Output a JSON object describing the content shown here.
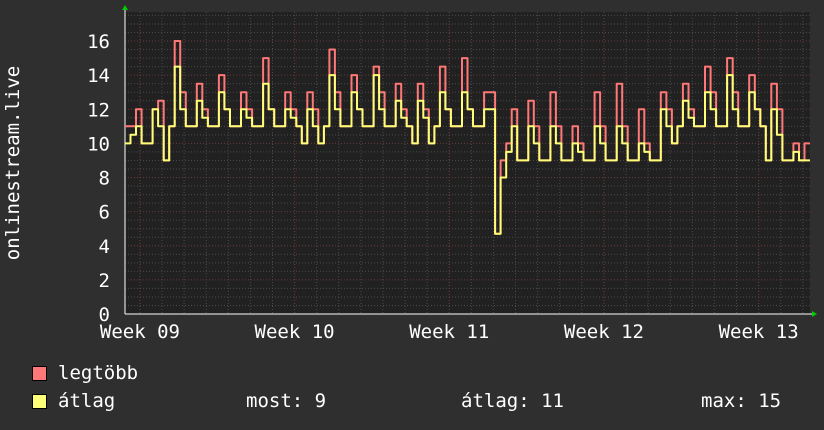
{
  "chart_data": {
    "type": "line",
    "ylabel": "onlinestream.live",
    "ylim": [
      0,
      17.7
    ],
    "y_ticks": [
      0,
      2,
      4,
      6,
      8,
      10,
      12,
      14,
      16
    ],
    "x_ticks": [
      "Week 09",
      "Week 10",
      "Week 11",
      "Week 12",
      "Week 13"
    ],
    "sample_interval": "6h",
    "grid": true,
    "legend_placement": "bottom-left",
    "series": [
      {
        "name": "legtöbb",
        "color": "#ff7777",
        "values": [
          11,
          11,
          12,
          10,
          10,
          12,
          12.5,
          9,
          11,
          16,
          13,
          11,
          11,
          13.5,
          12,
          11,
          11,
          14,
          12,
          11,
          11,
          13,
          12,
          11,
          11,
          15,
          12,
          11,
          11,
          13,
          12,
          11,
          10,
          13,
          12,
          10,
          11,
          15.5,
          13,
          11,
          11,
          14,
          12,
          11,
          11,
          14.5,
          13,
          11,
          11,
          13.5,
          12,
          11,
          10,
          13.5,
          12,
          10,
          11,
          14.5,
          12,
          11,
          11,
          15,
          12,
          11,
          11,
          13,
          13,
          4.7,
          9,
          10,
          12,
          9,
          9,
          12.5,
          11,
          9,
          9,
          13,
          11,
          9,
          9,
          11,
          10,
          9,
          9,
          13,
          11,
          9,
          9,
          13.5,
          11,
          9,
          9,
          12,
          10,
          9,
          9,
          13,
          12,
          10,
          11,
          13.5,
          12,
          11,
          11,
          14.5,
          13,
          11,
          11,
          15,
          13,
          11,
          11,
          14,
          12,
          11,
          9,
          13.5,
          12,
          9,
          9,
          10,
          9,
          10
        ]
      },
      {
        "name": "átlag",
        "color": "#ffff77",
        "values": [
          10,
          10.5,
          11,
          10,
          10,
          12,
          11,
          9,
          11,
          14.5,
          12,
          11,
          11,
          12.5,
          11.5,
          11,
          11,
          13,
          12,
          11,
          11,
          12,
          11.5,
          11,
          11,
          13.5,
          12,
          11,
          11,
          12,
          11.5,
          11,
          10,
          12,
          11,
          10,
          11,
          14,
          12,
          11,
          11,
          13,
          12,
          11,
          11,
          14,
          12,
          11,
          11,
          12.5,
          11.5,
          11,
          10,
          12.5,
          11.5,
          10,
          11,
          13,
          12,
          11,
          11,
          13,
          12,
          11,
          11,
          12,
          12,
          4.7,
          8,
          9.5,
          11,
          9,
          9,
          11,
          10,
          9,
          9,
          11,
          10,
          9,
          9,
          10,
          9.5,
          9,
          9,
          11,
          10,
          9,
          9,
          11,
          10,
          9,
          9,
          10,
          9.5,
          9,
          9,
          12,
          11,
          10,
          11,
          12.5,
          11.5,
          11,
          11,
          13,
          12,
          11,
          11,
          14,
          12,
          11,
          11,
          13,
          12,
          11,
          9,
          12,
          10.5,
          9,
          9,
          9.5,
          9,
          9
        ]
      }
    ]
  },
  "legend": {
    "max_label": "legtöbb",
    "avg_label": "átlag",
    "now": "most: 9",
    "avg": "átlag: 11",
    "max": "max: 15"
  }
}
